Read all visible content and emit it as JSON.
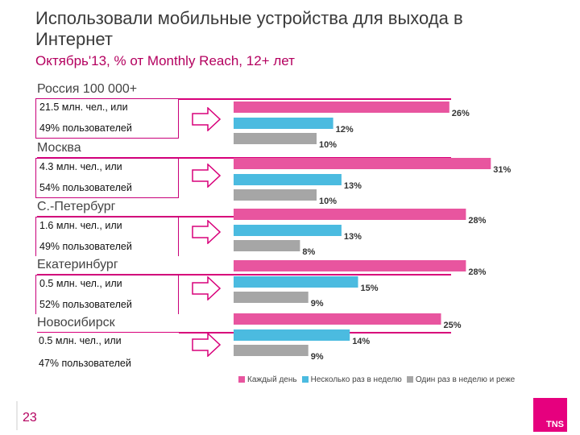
{
  "title": "Использовали мобильные устройства для выхода в Интернет",
  "subtitle": "Октябрь'13, % от Monthly Reach, 12+ лет",
  "regions": [
    {
      "name": "Россия 100 000+",
      "line1": "21.5 млн. чел., или",
      "line2": "49% пользователей"
    },
    {
      "name": "Москва",
      "line1": "4.3 млн. чел., или",
      "line2": "54% пользователей"
    },
    {
      "name": "С.-Петербург",
      "line1": "1.6 млн. чел., или",
      "line2": "49% пользователей"
    },
    {
      "name": "Екатеринбург",
      "line1": "0.5 млн. чел., или",
      "line2": "52% пользователей"
    },
    {
      "name": "Новосибирск",
      "line1": "0.5 млн. чел., или",
      "line2": "47% пользователей"
    }
  ],
  "legend": {
    "daily": "Каждый день",
    "weekly": "Несколько раз в неделю",
    "rare": "Один раз в неделю и реже"
  },
  "page_number": "23",
  "logo_text": "TNS",
  "colors": {
    "daily": "#e8559f",
    "weekly": "#4bbbe0",
    "rare": "#a6a6a6",
    "accent": "#d8007a"
  },
  "chart_data": {
    "type": "bar",
    "orientation": "horizontal",
    "categories": [
      "Россия 100 000+",
      "Москва",
      "С.-Петербург",
      "Екатеринбург",
      "Новосибирск"
    ],
    "series": [
      {
        "name": "Каждый день",
        "values": [
          26,
          31,
          28,
          28,
          25
        ],
        "labels": [
          "26%",
          "31%",
          "28%",
          "28%",
          "25%"
        ]
      },
      {
        "name": "Несколько раз в неделю",
        "values": [
          12,
          13,
          13,
          15,
          14
        ],
        "labels": [
          "12%",
          "13%",
          "13%",
          "15%",
          "14%"
        ]
      },
      {
        "name": "Один раз в неделю и реже",
        "values": [
          10,
          10,
          8,
          9,
          9
        ],
        "labels": [
          "10%",
          "10%",
          "8%",
          "9%",
          "9%"
        ]
      }
    ],
    "legend_position": "bottom"
  }
}
